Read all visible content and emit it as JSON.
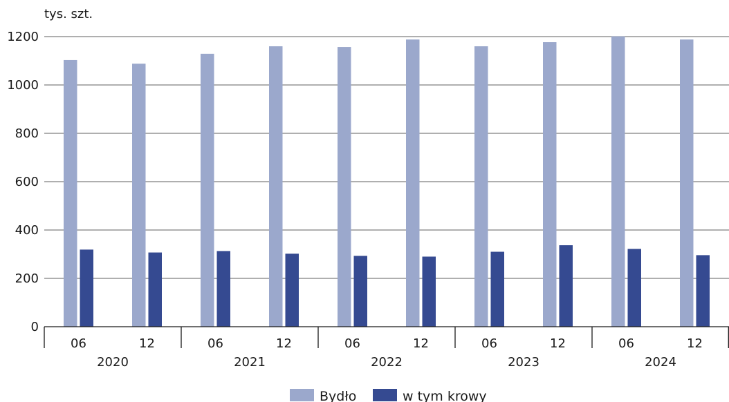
{
  "chart_data": {
    "type": "bar",
    "unit_label": "tys. szt.",
    "ylim": [
      0,
      1200
    ],
    "yticks": [
      "0",
      "200",
      "400",
      "600",
      "800",
      "1000",
      "1200"
    ],
    "grid": true,
    "legend_position": "bottom-center",
    "colors": {
      "Bydło": "#9ba8cc",
      "w tym krowy": "#354a91"
    },
    "groups": [
      {
        "year": "2020",
        "months": [
          "06",
          "12"
        ]
      },
      {
        "year": "2021",
        "months": [
          "06",
          "12"
        ]
      },
      {
        "year": "2022",
        "months": [
          "06",
          "12"
        ]
      },
      {
        "year": "2023",
        "months": [
          "06",
          "12"
        ]
      },
      {
        "year": "2024",
        "months": [
          "06",
          "12"
        ]
      }
    ],
    "categories": [
      "2020-06",
      "2020-12",
      "2021-06",
      "2021-12",
      "2022-06",
      "2022-12",
      "2023-06",
      "2023-12",
      "2024-06",
      "2024-12"
    ],
    "series": [
      {
        "name": "Bydło",
        "values": [
          1103,
          1088,
          1129,
          1160,
          1157,
          1188,
          1160,
          1177,
          1201,
          1188
        ]
      },
      {
        "name": "w tym krowy",
        "values": [
          319,
          307,
          313,
          302,
          293,
          290,
          310,
          337,
          322,
          296
        ]
      }
    ]
  }
}
